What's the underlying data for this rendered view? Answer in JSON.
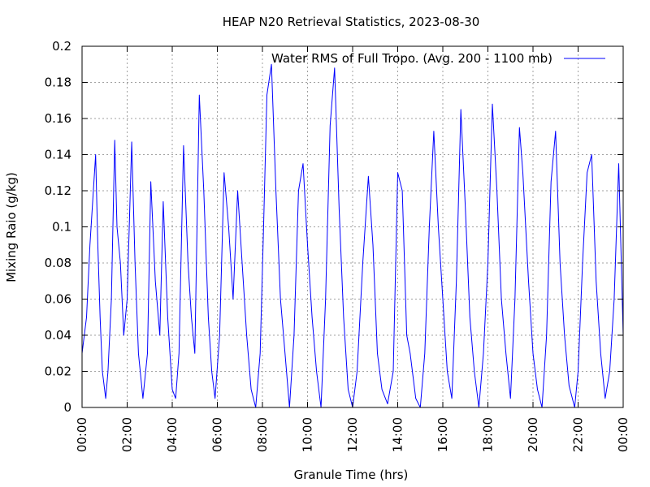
{
  "chart_data": {
    "type": "line",
    "title": "HEAP N20 Retrieval Statistics, 2023-08-30",
    "xlabel": "Granule Time (hrs)",
    "ylabel": "Mixing Raio (g/kg)",
    "xlim": [
      0,
      24
    ],
    "ylim": [
      0,
      0.2
    ],
    "x_ticks": [
      "00:00",
      "02:00",
      "04:00",
      "06:00",
      "08:00",
      "10:00",
      "12:00",
      "14:00",
      "16:00",
      "18:00",
      "20:00",
      "22:00",
      "00:00"
    ],
    "y_ticks": [
      "0",
      "0.02",
      "0.04",
      "0.06",
      "0.08",
      "0.1",
      "0.12",
      "0.14",
      "0.16",
      "0.18",
      "0.2"
    ],
    "grid": true,
    "legend_position": "top-right",
    "series": [
      {
        "name": "Water RMS of Full Tropo. (Avg. 200 - 1100 mb)",
        "color": "#0000ff",
        "x": [
          0.0,
          0.2,
          0.35,
          0.5,
          0.6,
          0.7,
          0.8,
          0.9,
          1.05,
          1.15,
          1.3,
          1.45,
          1.55,
          1.7,
          1.85,
          2.0,
          2.2,
          2.35,
          2.5,
          2.7,
          2.9,
          3.05,
          3.25,
          3.45,
          3.6,
          3.8,
          4.0,
          4.15,
          4.3,
          4.5,
          4.7,
          4.85,
          5.0,
          5.2,
          5.4,
          5.6,
          5.75,
          5.9,
          6.1,
          6.3,
          6.5,
          6.7,
          6.9,
          7.1,
          7.3,
          7.5,
          7.7,
          7.9,
          8.05,
          8.2,
          8.4,
          8.6,
          8.8,
          9.0,
          9.2,
          9.4,
          9.6,
          9.8,
          10.0,
          10.2,
          10.4,
          10.6,
          10.8,
          11.0,
          11.2,
          11.4,
          11.6,
          11.8,
          12.0,
          12.2,
          12.45,
          12.7,
          12.9,
          13.1,
          13.3,
          13.55,
          13.8,
          14.0,
          14.2,
          14.4,
          14.55,
          14.8,
          15.0,
          15.2,
          15.4,
          15.6,
          15.8,
          16.0,
          16.2,
          16.4,
          16.6,
          16.8,
          17.0,
          17.2,
          17.4,
          17.6,
          17.8,
          18.0,
          18.2,
          18.4,
          18.6,
          18.8,
          19.0,
          19.2,
          19.4,
          19.55,
          19.8,
          20.0,
          20.2,
          20.4,
          20.6,
          20.8,
          21.0,
          21.2,
          21.4,
          21.6,
          21.85,
          22.0,
          22.2,
          22.4,
          22.6,
          22.8,
          23.0,
          23.2,
          23.4,
          23.6,
          23.8,
          24.0
        ],
        "values": [
          0.03,
          0.05,
          0.09,
          0.12,
          0.14,
          0.09,
          0.05,
          0.02,
          0.005,
          0.02,
          0.06,
          0.148,
          0.1,
          0.08,
          0.04,
          0.06,
          0.147,
          0.08,
          0.03,
          0.005,
          0.03,
          0.125,
          0.07,
          0.04,
          0.114,
          0.05,
          0.01,
          0.005,
          0.03,
          0.145,
          0.08,
          0.05,
          0.03,
          0.173,
          0.12,
          0.05,
          0.02,
          0.005,
          0.04,
          0.13,
          0.1,
          0.06,
          0.12,
          0.08,
          0.04,
          0.01,
          0.0,
          0.03,
          0.1,
          0.173,
          0.19,
          0.12,
          0.06,
          0.03,
          0.0,
          0.04,
          0.12,
          0.135,
          0.09,
          0.05,
          0.02,
          0.0,
          0.06,
          0.156,
          0.188,
          0.11,
          0.05,
          0.01,
          0.0,
          0.02,
          0.08,
          0.128,
          0.09,
          0.03,
          0.01,
          0.002,
          0.02,
          0.13,
          0.12,
          0.04,
          0.03,
          0.005,
          0.0,
          0.03,
          0.1,
          0.153,
          0.1,
          0.06,
          0.02,
          0.005,
          0.07,
          0.165,
          0.11,
          0.05,
          0.02,
          0.0,
          0.03,
          0.08,
          0.168,
          0.12,
          0.06,
          0.03,
          0.005,
          0.06,
          0.155,
          0.13,
          0.07,
          0.03,
          0.01,
          0.0,
          0.04,
          0.125,
          0.153,
          0.08,
          0.04,
          0.012,
          0.0,
          0.02,
          0.08,
          0.13,
          0.14,
          0.07,
          0.03,
          0.005,
          0.02,
          0.06,
          0.135,
          0.04
        ]
      }
    ]
  }
}
